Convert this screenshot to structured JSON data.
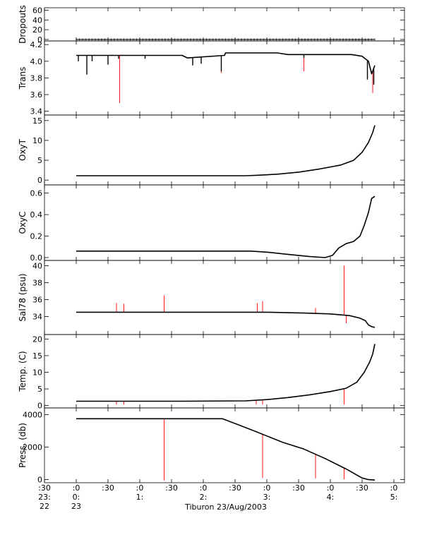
{
  "figure": {
    "caption": "Tiburon 23/Aug/2003",
    "background": "#ffffff",
    "trace_color": "#000000",
    "spike_color": "#ff0000"
  },
  "x_axis": {
    "ticks": [
      {
        "t": -30,
        "l1": ":30",
        "l2": "23:",
        "l3": "22"
      },
      {
        "t": 0,
        "l1": ":0",
        "l2": "0:",
        "l3": "23"
      },
      {
        "t": 30,
        "l1": ":30",
        "l2": "",
        "l3": ""
      },
      {
        "t": 60,
        "l1": ":0",
        "l2": "1:",
        "l3": ""
      },
      {
        "t": 90,
        "l1": ":30",
        "l2": "",
        "l3": ""
      },
      {
        "t": 120,
        "l1": ":0",
        "l2": "2:",
        "l3": ""
      },
      {
        "t": 150,
        "l1": ":30",
        "l2": "",
        "l3": ""
      },
      {
        "t": 180,
        "l1": ":0",
        "l2": "3:",
        "l3": ""
      },
      {
        "t": 210,
        "l1": ":30",
        "l2": "",
        "l3": ""
      },
      {
        "t": 240,
        "l1": ":0",
        "l2": "4:",
        "l3": ""
      },
      {
        "t": 270,
        "l1": ":30",
        "l2": "",
        "l3": ""
      },
      {
        "t": 300,
        "l1": ":0",
        "l2": "5:",
        "l3": ""
      }
    ]
  },
  "chart_data": [
    {
      "type": "line",
      "id": "dropouts",
      "ylabel": "Dropouts",
      "xlim": [
        -30,
        310
      ],
      "ylim": [
        -3,
        65
      ],
      "yticks": [
        0,
        20,
        40,
        60
      ],
      "ytick_labels": [
        "0",
        "20",
        "40",
        "60"
      ],
      "series": [
        {
          "style": "constant",
          "value": 0,
          "x_start": 0,
          "x_end": 282,
          "markers": true
        }
      ],
      "spikes": []
    },
    {
      "type": "line",
      "id": "trans",
      "ylabel": "Trans",
      "xlim": [
        -30,
        310
      ],
      "ylim": [
        3.38,
        4.21
      ],
      "yticks": [
        3.4,
        3.6,
        3.8,
        4.0,
        4.2
      ],
      "ytick_labels": [
        "3.4",
        "3.6",
        "3.8",
        "4.0",
        "4.2"
      ],
      "series": [
        {
          "points": [
            [
              0,
              4.07
            ],
            [
              100,
              4.07
            ],
            [
              105,
              4.04
            ],
            [
              140,
              4.07
            ],
            [
              141,
              4.1
            ],
            [
              190,
              4.1
            ],
            [
              200,
              4.08
            ],
            [
              260,
              4.08
            ],
            [
              270,
              4.06
            ],
            [
              276,
              4.0
            ],
            [
              279,
              3.85
            ],
            [
              282,
              3.95
            ]
          ]
        }
      ],
      "dips": [
        [
          2,
          4.0
        ],
        [
          10,
          3.84
        ],
        [
          15,
          4.0
        ],
        [
          30,
          3.96
        ],
        [
          40,
          4.03
        ],
        [
          65,
          4.03
        ],
        [
          110,
          3.95
        ],
        [
          118,
          3.97
        ],
        [
          137,
          3.88
        ],
        [
          215,
          4.04
        ],
        [
          275,
          3.78
        ],
        [
          281,
          3.72
        ]
      ],
      "spikes": [
        [
          41,
          3.5
        ],
        [
          137,
          3.86
        ],
        [
          215,
          3.88
        ],
        [
          280,
          3.62
        ]
      ]
    },
    {
      "type": "line",
      "id": "oxyt",
      "ylabel": "OxyT",
      "xlim": [
        -30,
        310
      ],
      "ylim": [
        -0.5,
        15.5
      ],
      "yticks": [
        0,
        5,
        10,
        15
      ],
      "ytick_labels": [
        "0",
        "5",
        "10",
        "15"
      ],
      "series": [
        {
          "points": [
            [
              0,
              1.1
            ],
            [
              160,
              1.1
            ],
            [
              170,
              1.2
            ],
            [
              190,
              1.5
            ],
            [
              210,
              2.0
            ],
            [
              230,
              2.8
            ],
            [
              250,
              3.8
            ],
            [
              262,
              5.0
            ],
            [
              270,
              7.0
            ],
            [
              276,
              9.5
            ],
            [
              280,
              12.0
            ],
            [
              282,
              13.8
            ]
          ]
        }
      ],
      "spikes": []
    },
    {
      "type": "line",
      "id": "oxyc",
      "ylabel": "OxyC",
      "xlim": [
        -30,
        310
      ],
      "ylim": [
        -0.02,
        0.65
      ],
      "yticks": [
        0.0,
        0.2,
        0.4,
        0.6
      ],
      "ytick_labels": [
        "0.0",
        "0.2",
        "0.4",
        "0.6"
      ],
      "series": [
        {
          "points": [
            [
              0,
              0.06
            ],
            [
              165,
              0.06
            ],
            [
              180,
              0.05
            ],
            [
              200,
              0.03
            ],
            [
              220,
              0.01
            ],
            [
              235,
              0.0
            ],
            [
              242,
              0.02
            ],
            [
              248,
              0.09
            ],
            [
              255,
              0.13
            ],
            [
              262,
              0.15
            ],
            [
              268,
              0.2
            ],
            [
              272,
              0.3
            ],
            [
              276,
              0.42
            ],
            [
              279,
              0.55
            ],
            [
              282,
              0.57
            ]
          ]
        }
      ],
      "spikes": []
    },
    {
      "type": "line",
      "id": "sal78",
      "ylabel": "Sal78 (psu)",
      "xlim": [
        -30,
        310
      ],
      "ylim": [
        32.2,
        40.2
      ],
      "yticks": [
        34,
        36,
        38,
        40
      ],
      "ytick_labels": [
        "34",
        "36",
        "38",
        "40"
      ],
      "series": [
        {
          "points": [
            [
              0,
              34.5
            ],
            [
              180,
              34.5
            ],
            [
              215,
              34.4
            ],
            [
              240,
              34.3
            ],
            [
              258,
              34.1
            ],
            [
              268,
              33.8
            ],
            [
              273,
              33.5
            ],
            [
              276,
              33.0
            ],
            [
              279,
              32.8
            ],
            [
              282,
              32.7
            ]
          ]
        }
      ],
      "spikes": [
        [
          38,
          35.6
        ],
        [
          45,
          35.5
        ],
        [
          83,
          36.5
        ],
        [
          171,
          35.6
        ],
        [
          176,
          35.8
        ],
        [
          226,
          35.0
        ],
        [
          253,
          40.0
        ],
        [
          255,
          33.2
        ]
      ]
    },
    {
      "type": "line",
      "id": "temp",
      "ylabel": "Temp. (C)",
      "xlim": [
        -30,
        310
      ],
      "ylim": [
        -0.5,
        20.5
      ],
      "yticks": [
        0,
        5,
        10,
        15,
        20
      ],
      "ytick_labels": [
        "0",
        "5",
        "10",
        "15",
        "20"
      ],
      "series": [
        {
          "points": [
            [
              0,
              1.3
            ],
            [
              100,
              1.3
            ],
            [
              160,
              1.4
            ],
            [
              180,
              1.8
            ],
            [
              200,
              2.4
            ],
            [
              220,
              3.2
            ],
            [
              240,
              4.2
            ],
            [
              255,
              5.2
            ],
            [
              265,
              7.0
            ],
            [
              272,
              10.0
            ],
            [
              277,
              13.0
            ],
            [
              280,
              15.5
            ],
            [
              282,
              18.5
            ]
          ]
        }
      ],
      "spikes": [
        [
          38,
          0.3
        ],
        [
          45,
          0.3
        ],
        [
          170,
          0.3
        ],
        [
          176,
          0.3
        ],
        [
          253,
          0.3
        ]
      ]
    },
    {
      "type": "line",
      "id": "press",
      "ylabel": "Press. (db)",
      "xlim": [
        -30,
        310
      ],
      "ylim": [
        -150,
        4200
      ],
      "yticks": [
        0,
        2000,
        4000
      ],
      "ytick_labels": [
        "0",
        "2000",
        "4000"
      ],
      "series": [
        {
          "points": [
            [
              0,
              3750
            ],
            [
              138,
              3750
            ],
            [
              155,
              3330
            ],
            [
              170,
              2950
            ],
            [
              185,
              2560
            ],
            [
              195,
              2300
            ],
            [
              215,
              1880
            ],
            [
              235,
              1300
            ],
            [
              255,
              650
            ],
            [
              270,
              100
            ],
            [
              276,
              0
            ],
            [
              282,
              -30
            ]
          ]
        }
      ],
      "spikes": [
        [
          83,
          -50
        ],
        [
          176,
          100
        ],
        [
          226,
          80
        ],
        [
          253,
          20
        ]
      ]
    }
  ]
}
